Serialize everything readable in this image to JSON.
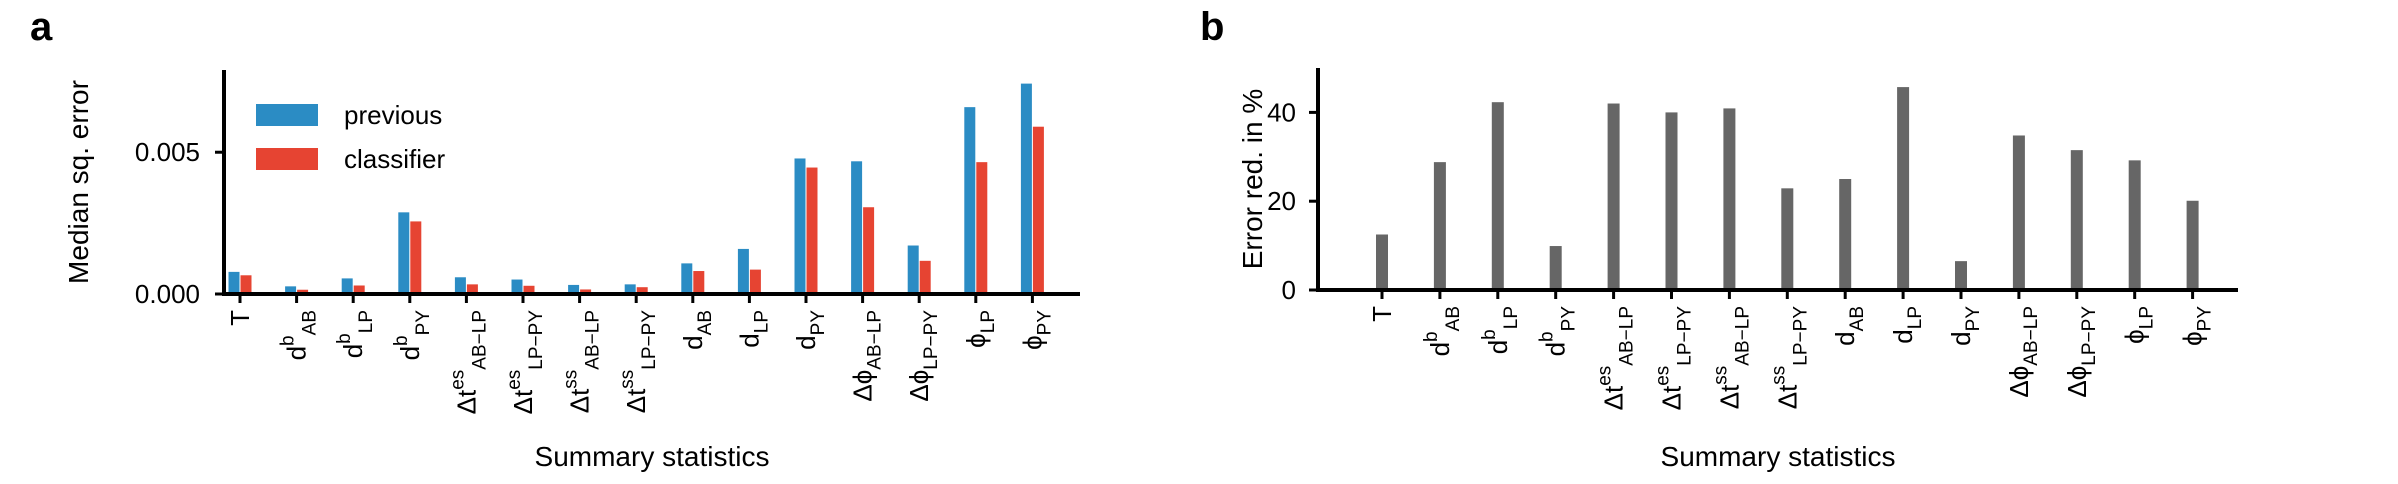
{
  "chart_data": [
    {
      "panel": "a",
      "type": "bar",
      "title": "",
      "xlabel": "Summary statistics",
      "ylabel": "Median sq. error",
      "ylim": [
        0,
        0.0079
      ],
      "yticks": [
        "0.000",
        "0.005"
      ],
      "ytick_values": [
        0.0,
        0.005
      ],
      "grid": false,
      "legend": {
        "placement": "top-left"
      },
      "categories": [
        {
          "base": "T"
        },
        {
          "base": "d",
          "sup": "b",
          "sub": "AB"
        },
        {
          "base": "d",
          "sup": "b",
          "sub": "LP"
        },
        {
          "base": "d",
          "sup": "b",
          "sub": "PY"
        },
        {
          "base": "Δt",
          "sup": "es",
          "sub": "AB−LP"
        },
        {
          "base": "Δt",
          "sup": "es",
          "sub": "LP−PY"
        },
        {
          "base": "Δt",
          "sup": "ss",
          "sub": "AB−LP"
        },
        {
          "base": "Δt",
          "sup": "ss",
          "sub": "LP−PY"
        },
        {
          "base": "d",
          "sub": "AB"
        },
        {
          "base": "d",
          "sub": "LP"
        },
        {
          "base": "d",
          "sub": "PY"
        },
        {
          "base": "Δϕ",
          "sub": "AB−LP"
        },
        {
          "base": "Δϕ",
          "sub": "LP−PY"
        },
        {
          "base": "ϕ",
          "sub": "LP"
        },
        {
          "base": "ϕ",
          "sub": "PY"
        }
      ],
      "series": [
        {
          "name": "previous",
          "color": "#2b8cc4",
          "values": [
            0.00078,
            0.00027,
            0.00055,
            0.00288,
            0.00059,
            0.00051,
            0.00032,
            0.00034,
            0.00108,
            0.00159,
            0.00478,
            0.00468,
            0.00171,
            0.00659,
            0.00742
          ]
        },
        {
          "name": "classifier",
          "color": "#e64432",
          "values": [
            0.00066,
            0.00015,
            0.0003,
            0.00256,
            0.00034,
            0.00029,
            0.00016,
            0.00024,
            0.00081,
            0.00086,
            0.00446,
            0.00306,
            0.00117,
            0.00465,
            0.0059
          ]
        }
      ]
    },
    {
      "panel": "b",
      "type": "bar",
      "title": "",
      "xlabel": "Summary statistics",
      "ylabel": "Error red. in %",
      "ylim": [
        0,
        50
      ],
      "yticks": [
        "0",
        "20",
        "40"
      ],
      "ytick_values": [
        0,
        20,
        40
      ],
      "grid": false,
      "categories": [
        {
          "base": "T"
        },
        {
          "base": "d",
          "sup": "b",
          "sub": "AB"
        },
        {
          "base": "d",
          "sup": "b",
          "sub": "LP"
        },
        {
          "base": "d",
          "sup": "b",
          "sub": "PY"
        },
        {
          "base": "Δt",
          "sup": "es",
          "sub": "AB−LP"
        },
        {
          "base": "Δt",
          "sup": "es",
          "sub": "LP−PY"
        },
        {
          "base": "Δt",
          "sup": "ss",
          "sub": "AB−LP"
        },
        {
          "base": "Δt",
          "sup": "ss",
          "sub": "LP−PY"
        },
        {
          "base": "d",
          "sub": "AB"
        },
        {
          "base": "d",
          "sub": "LP"
        },
        {
          "base": "d",
          "sub": "PY"
        },
        {
          "base": "Δϕ",
          "sub": "AB−LP"
        },
        {
          "base": "Δϕ",
          "sub": "LP−PY"
        },
        {
          "base": "ϕ",
          "sub": "LP"
        },
        {
          "base": "ϕ",
          "sub": "PY"
        }
      ],
      "series": [
        {
          "color": "#666666",
          "values": [
            12.5,
            28.8,
            42.3,
            9.9,
            42.0,
            40.0,
            40.9,
            22.9,
            25.0,
            45.7,
            6.5,
            34.8,
            31.5,
            29.2,
            20.1
          ]
        }
      ]
    }
  ],
  "panels": [
    {
      "letter": "a"
    },
    {
      "letter": "b"
    }
  ]
}
